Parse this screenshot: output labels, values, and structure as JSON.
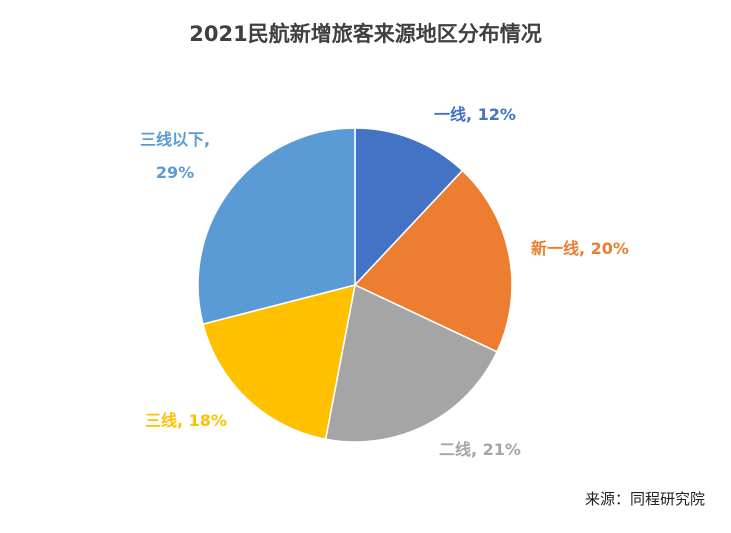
{
  "chart_data": {
    "type": "pie",
    "title": "2021民航新增旅客来源地区分布情况",
    "categories": [
      "一线",
      "新一线",
      "二线",
      "三线",
      "三线以下"
    ],
    "values": [
      12,
      20,
      21,
      18,
      29
    ],
    "labels": [
      "一线, 12%",
      "新一线, 20%",
      "二线, 21%",
      "三线, 18%",
      [
        "三线以下,",
        "29%"
      ]
    ],
    "colors": [
      "#4472C4",
      "#ED7D31",
      "#A5A5A5",
      "#FFC000",
      "#5B9BD5"
    ],
    "label_colors": [
      "#4472C4",
      "#ED7D31",
      "#A5A5A5",
      "#FFC000",
      "#5B9BD5"
    ]
  },
  "footer": {
    "source": "来源：同程研究院"
  }
}
